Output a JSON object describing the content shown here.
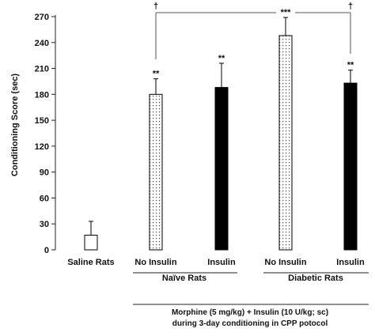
{
  "chart_data": {
    "type": "bar",
    "ylabel": "Conditioning Score (sec)",
    "ylim": [
      0,
      270
    ],
    "yticks": [
      0,
      30,
      60,
      90,
      120,
      150,
      180,
      210,
      240,
      270
    ],
    "grid": false,
    "bars": [
      {
        "category": "Saline Rats",
        "value": 17,
        "error": 16,
        "style": "open",
        "sig": ""
      },
      {
        "category": "No Insulin",
        "value": 180,
        "error": 18,
        "style": "dotted",
        "sig": "**"
      },
      {
        "category": "Insulin",
        "value": 188,
        "error": 28,
        "style": "solid",
        "sig": "**"
      },
      {
        "category": "No Insulin",
        "value": 248,
        "error": 21,
        "style": "dotted",
        "sig": "***"
      },
      {
        "category": "Insulin",
        "value": 193,
        "error": 15,
        "style": "solid",
        "sig": "**"
      }
    ],
    "groups": [
      {
        "label": "Naïve Rats"
      },
      {
        "label": "Diabetic Rats"
      }
    ],
    "comparison": {
      "symbol": "†"
    },
    "treatment": {
      "line1": "Morphine (5 mg/kg)  +  Insulin (10 U/kg; sc)",
      "line2": "during 3-day conditioning in CPP potocol"
    }
  }
}
